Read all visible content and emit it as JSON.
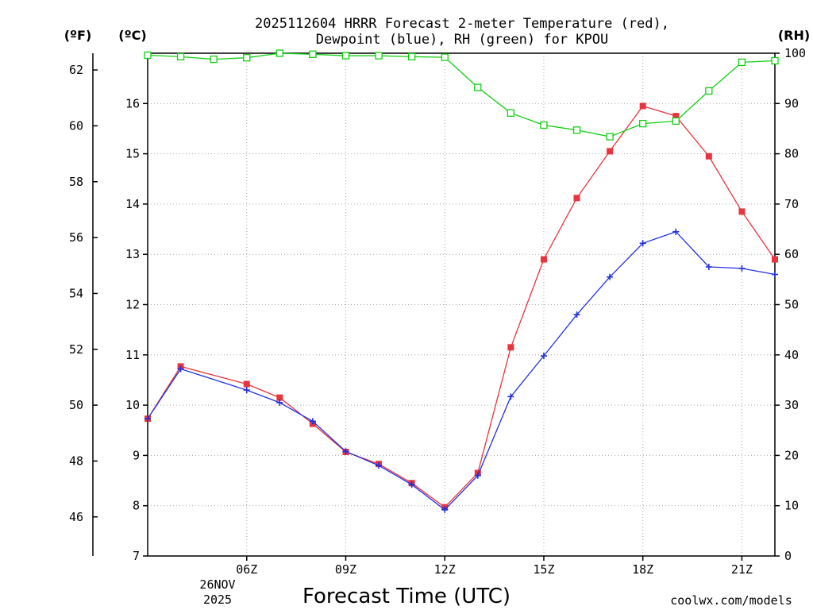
{
  "chart_data": {
    "type": "line",
    "title_line1": "2025112604 HRRR Forecast 2-meter Temperature (red),",
    "title_line2": "Dewpoint (blue), RH (green) for KPOU",
    "xlabel": "Forecast Time (UTC)",
    "credit": "coolwx.com/models",
    "credit_color": "#e0303a",
    "date_label": [
      "26NOV",
      "2025"
    ],
    "units": {
      "fahrenheit": "(ºF)",
      "celsius": "(ºC)",
      "rh": "(RH)"
    },
    "x_hours": [
      3,
      4,
      5,
      6,
      7,
      8,
      9,
      10,
      11,
      12,
      13,
      14,
      15,
      16,
      17,
      18,
      19,
      20,
      21,
      22
    ],
    "xlim": [
      3,
      22
    ],
    "x_ticks": [
      {
        "hour": 6,
        "label": "06Z"
      },
      {
        "hour": 9,
        "label": "09Z"
      },
      {
        "hour": 12,
        "label": "12Z"
      },
      {
        "hour": 15,
        "label": "15Z"
      },
      {
        "hour": 18,
        "label": "18Z"
      },
      {
        "hour": 21,
        "label": "21Z"
      }
    ],
    "celsius_axis": {
      "lim": [
        7,
        17
      ],
      "ticks": [
        "7",
        "8",
        "9",
        "10",
        "11",
        "12",
        "13",
        "14",
        "15",
        "16"
      ]
    },
    "fahrenheit_axis": {
      "ticks": [
        "46",
        "48",
        "50",
        "52",
        "54",
        "56",
        "58",
        "60",
        "62"
      ]
    },
    "rh_axis": {
      "lim": [
        0,
        100
      ],
      "ticks": [
        "0",
        "10",
        "20",
        "30",
        "40",
        "50",
        "60",
        "70",
        "80",
        "90",
        "100"
      ]
    },
    "series": [
      {
        "name": "Temperature",
        "color": "#e8343c",
        "marker": "filled-square",
        "axis": "celsius",
        "values": [
          9.73,
          10.77,
          null,
          10.42,
          10.15,
          9.63,
          9.07,
          8.83,
          8.45,
          7.97,
          8.65,
          11.15,
          12.9,
          14.12,
          15.05,
          15.95,
          15.75,
          14.95,
          13.85,
          12.9
        ]
      },
      {
        "name": "Dewpoint",
        "color": "#2230e0",
        "marker": "plus",
        "axis": "celsius",
        "values": [
          9.73,
          10.72,
          null,
          10.3,
          10.05,
          9.68,
          9.08,
          8.8,
          8.42,
          7.92,
          8.6,
          10.17,
          10.98,
          11.8,
          12.55,
          13.22,
          13.45,
          12.75,
          12.72,
          12.6
        ]
      },
      {
        "name": "RH",
        "color": "#10d010",
        "marker": "open-square",
        "axis": "rh",
        "values": [
          99.6,
          99.3,
          98.8,
          99.1,
          100.0,
          99.8,
          99.5,
          99.5,
          99.3,
          99.2,
          93.2,
          88.1,
          85.7,
          84.7,
          83.4,
          86.0,
          86.5,
          92.5,
          98.2,
          98.5
        ]
      }
    ]
  }
}
